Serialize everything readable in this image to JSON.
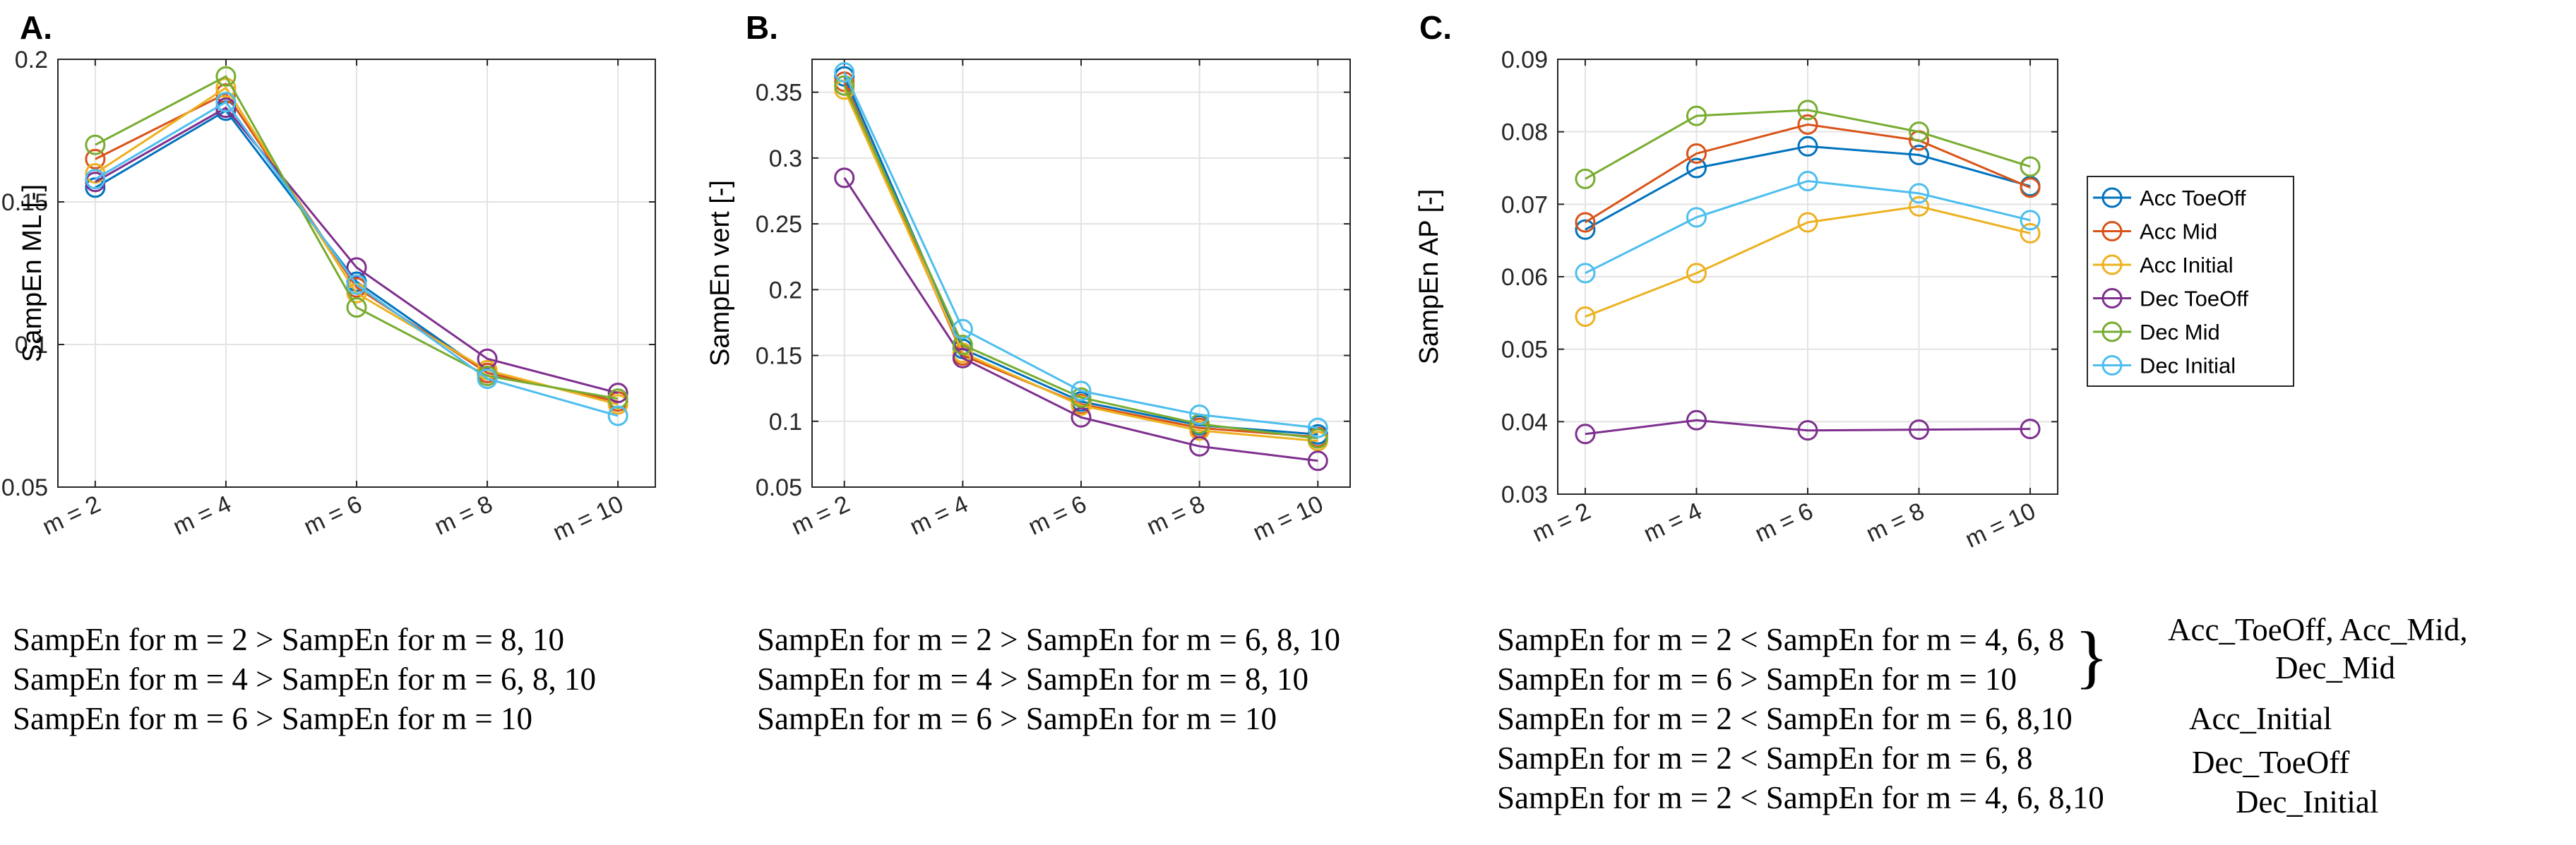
{
  "colors": {
    "Acc ToeOff": "#0072BD",
    "Acc Mid": "#D95319",
    "Acc Initial": "#EDB120",
    "Dec ToeOff": "#7E2F8E",
    "Dec Mid": "#77AC30",
    "Dec Initial": "#4DBEEE"
  },
  "legend": [
    "Acc ToeOff",
    "Acc Mid",
    "Acc Initial",
    "Dec ToeOff",
    "Dec Mid",
    "Dec Initial"
  ],
  "chart_data": [
    {
      "type": "line",
      "panel_label": "A.",
      "title": "",
      "xlabel": "",
      "ylabel": "SampEn ML [-]",
      "categories": [
        "m = 2",
        "m = 4",
        "m = 6",
        "m = 8",
        "m = 10"
      ],
      "ylim": [
        0.05,
        0.2
      ],
      "yticks": [
        0.05,
        0.1,
        0.15,
        0.2
      ],
      "ytick_labels": [
        "0.05",
        "0.1",
        "0.15",
        "0.2"
      ],
      "grid": true,
      "series": [
        {
          "name": "Acc ToeOff",
          "values": [
            0.155,
            0.182,
            0.122,
            0.09,
            0.08
          ]
        },
        {
          "name": "Acc Mid",
          "values": [
            0.165,
            0.188,
            0.12,
            0.09,
            0.08
          ]
        },
        {
          "name": "Acc Initial",
          "values": [
            0.16,
            0.19,
            0.118,
            0.091,
            0.079
          ]
        },
        {
          "name": "Dec ToeOff",
          "values": [
            0.157,
            0.183,
            0.127,
            0.095,
            0.083
          ]
        },
        {
          "name": "Dec Mid",
          "values": [
            0.17,
            0.194,
            0.113,
            0.089,
            0.081
          ]
        },
        {
          "name": "Dec Initial",
          "values": [
            0.158,
            0.185,
            0.121,
            0.088,
            0.075
          ]
        }
      ]
    },
    {
      "type": "line",
      "panel_label": "B.",
      "title": "",
      "xlabel": "",
      "ylabel": "SampEn vert [-]",
      "categories": [
        "m = 2",
        "m = 4",
        "m = 6",
        "m = 8",
        "m = 10"
      ],
      "ylim": [
        0.05,
        0.375
      ],
      "yticks": [
        0.05,
        0.1,
        0.15,
        0.2,
        0.25,
        0.3,
        0.35
      ],
      "ytick_labels": [
        "0.05",
        "0.1",
        "0.15",
        "0.2",
        "0.25",
        "0.3",
        "0.35"
      ],
      "grid": true,
      "series": [
        {
          "name": "Acc ToeOff",
          "values": [
            0.362,
            0.155,
            0.115,
            0.097,
            0.09
          ]
        },
        {
          "name": "Acc Mid",
          "values": [
            0.358,
            0.15,
            0.113,
            0.095,
            0.088
          ]
        },
        {
          "name": "Acc Initial",
          "values": [
            0.352,
            0.152,
            0.112,
            0.093,
            0.085
          ]
        },
        {
          "name": "Dec ToeOff",
          "values": [
            0.285,
            0.148,
            0.103,
            0.081,
            0.07
          ]
        },
        {
          "name": "Dec Mid",
          "values": [
            0.355,
            0.158,
            0.118,
            0.098,
            0.087
          ]
        },
        {
          "name": "Dec Initial",
          "values": [
            0.365,
            0.17,
            0.123,
            0.105,
            0.095
          ]
        }
      ]
    },
    {
      "type": "line",
      "panel_label": "C.",
      "title": "",
      "xlabel": "",
      "ylabel": "SampEn AP [-]",
      "categories": [
        "m = 2",
        "m = 4",
        "m = 6",
        "m = 8",
        "m = 10"
      ],
      "ylim": [
        0.03,
        0.09
      ],
      "yticks": [
        0.03,
        0.04,
        0.05,
        0.06,
        0.07,
        0.08,
        0.09
      ],
      "ytick_labels": [
        "0.03",
        "0.04",
        "0.05",
        "0.06",
        "0.07",
        "0.08",
        "0.09"
      ],
      "grid": true,
      "legend_position": "right",
      "series": [
        {
          "name": "Acc ToeOff",
          "values": [
            0.0665,
            0.075,
            0.078,
            0.0768,
            0.0725
          ]
        },
        {
          "name": "Acc Mid",
          "values": [
            0.0675,
            0.077,
            0.081,
            0.0788,
            0.0723
          ]
        },
        {
          "name": "Acc Initial",
          "values": [
            0.0545,
            0.0605,
            0.0675,
            0.0697,
            0.066
          ]
        },
        {
          "name": "Dec ToeOff",
          "values": [
            0.0383,
            0.0402,
            0.0388,
            0.0389,
            0.039
          ]
        },
        {
          "name": "Dec Mid",
          "values": [
            0.0735,
            0.0822,
            0.083,
            0.08,
            0.0752
          ]
        },
        {
          "name": "Dec Initial",
          "values": [
            0.0605,
            0.0682,
            0.0732,
            0.0715,
            0.0678
          ]
        }
      ]
    }
  ],
  "notes": {
    "A": [
      "SampEn for m = 2 > SampEn for m = 8, 10",
      "SampEn for m = 4 > SampEn for m = 6, 8, 10",
      "SampEn for m = 6 > SampEn for m = 10"
    ],
    "B": [
      "SampEn for m = 2 > SampEn for m = 6, 8, 10",
      "SampEn for m = 4 > SampEn for m = 8, 10",
      "SampEn for m = 6 > SampEn for m = 10"
    ],
    "C": [
      "SampEn for m = 2 < SampEn for m = 4, 6, 8",
      "SampEn for m = 6 > SampEn for m = 10",
      "SampEn for m = 2 < SampEn for m = 6, 8,10",
      "SampEn for m = 2 < SampEn for m = 6, 8",
      "SampEn for m = 2 < SampEn for m = 4, 6, 8,10"
    ],
    "C_groups": [
      "Acc_ToeOff, Acc_Mid,",
      "Dec_Mid",
      "Acc_Initial",
      "Dec_ToeOff",
      "Dec_Initial"
    ],
    "brace": "}"
  }
}
